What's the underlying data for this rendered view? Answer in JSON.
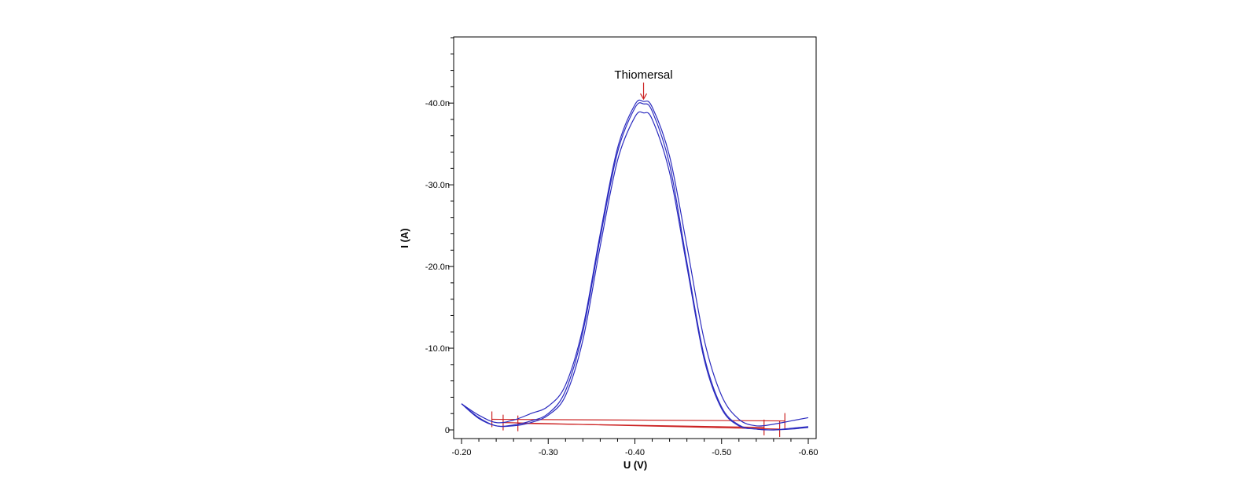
{
  "chart_data": {
    "type": "line",
    "title": "",
    "xlabel": "U (V)",
    "ylabel": "I (A)",
    "xlim": [
      -0.2,
      -0.6
    ],
    "ylim": [
      0,
      -48
    ],
    "x_ticks": [
      {
        "value": -0.2,
        "label": "-0.20"
      },
      {
        "value": -0.3,
        "label": "-0.30"
      },
      {
        "value": -0.4,
        "label": "-0.40"
      },
      {
        "value": -0.5,
        "label": "-0.50"
      },
      {
        "value": -0.6,
        "label": "-0.60"
      }
    ],
    "y_ticks": [
      {
        "value": 0,
        "label": "0"
      },
      {
        "value": -10,
        "label": "-10.0n"
      },
      {
        "value": -20,
        "label": "-20.0n"
      },
      {
        "value": -30,
        "label": "-30.0n"
      },
      {
        "value": -40,
        "label": "-40.0n"
      }
    ],
    "grid": false,
    "series_color": "#2b2bbf",
    "baseline_color": "#cc2222",
    "series": [
      {
        "x": [
          -0.2,
          -0.22,
          -0.24,
          -0.26,
          -0.28,
          -0.3,
          -0.32,
          -0.34,
          -0.36,
          -0.38,
          -0.4,
          -0.41,
          -0.42,
          -0.44,
          -0.46,
          -0.48,
          -0.5,
          -0.52,
          -0.54,
          -0.56,
          -0.58,
          -0.6
        ],
        "y": [
          -3.2,
          -1.8,
          -0.9,
          -1.2,
          -2.0,
          -2.9,
          -5.5,
          -12.5,
          -24.0,
          -34.5,
          -39.8,
          -40.2,
          -39.5,
          -33.5,
          -22.5,
          -11.0,
          -4.2,
          -1.3,
          -0.5,
          -0.7,
          -1.1,
          -1.5
        ]
      },
      {
        "x": [
          -0.2,
          -0.22,
          -0.24,
          -0.26,
          -0.28,
          -0.3,
          -0.32,
          -0.34,
          -0.36,
          -0.38,
          -0.4,
          -0.41,
          -0.42,
          -0.44,
          -0.46,
          -0.48,
          -0.5,
          -0.52,
          -0.54,
          -0.56,
          -0.58,
          -0.6
        ],
        "y": [
          -3.2,
          -1.5,
          -0.5,
          -0.6,
          -1.1,
          -2.0,
          -4.8,
          -12.0,
          -23.5,
          -34.0,
          -39.4,
          -39.9,
          -39.0,
          -32.5,
          -20.5,
          -9.0,
          -2.8,
          -0.6,
          -0.1,
          0.0,
          -0.2,
          -0.4
        ]
      },
      {
        "x": [
          -0.2,
          -0.22,
          -0.24,
          -0.26,
          -0.28,
          -0.3,
          -0.32,
          -0.34,
          -0.36,
          -0.38,
          -0.4,
          -0.41,
          -0.42,
          -0.44,
          -0.46,
          -0.48,
          -0.5,
          -0.52,
          -0.54,
          -0.56,
          -0.58,
          -0.6
        ],
        "y": [
          -3.2,
          -1.4,
          -0.5,
          -0.5,
          -0.9,
          -1.8,
          -4.2,
          -11.0,
          -22.5,
          -33.0,
          -38.3,
          -38.8,
          -38.0,
          -31.5,
          -20.0,
          -8.6,
          -2.6,
          -0.5,
          -0.1,
          0.0,
          -0.1,
          -0.3
        ]
      }
    ],
    "baselines": [
      {
        "x": [
          -0.235,
          -0.573
        ],
        "y": [
          -1.3,
          -1.1
        ]
      },
      {
        "x": [
          -0.248,
          -0.567
        ],
        "y": [
          -0.9,
          -0.1
        ]
      },
      {
        "x": [
          -0.265,
          -0.549
        ],
        "y": [
          -0.8,
          -0.3
        ]
      }
    ],
    "annotations": [
      {
        "text": "Thiomersal",
        "x": -0.41,
        "y": -40.2
      }
    ]
  }
}
